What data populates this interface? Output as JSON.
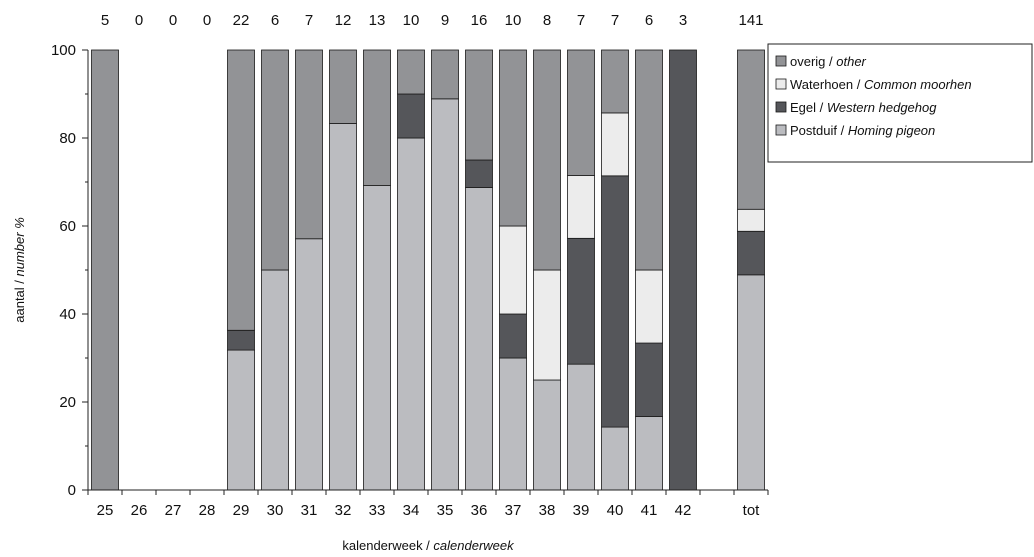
{
  "chart_data": {
    "type": "bar",
    "stacked": true,
    "percent": true,
    "categories": [
      "25",
      "26",
      "27",
      "28",
      "29",
      "30",
      "31",
      "32",
      "33",
      "34",
      "35",
      "36",
      "37",
      "38",
      "39",
      "40",
      "41",
      "42",
      "",
      "tot"
    ],
    "counts": [
      "5",
      "0",
      "0",
      "0",
      "22",
      "6",
      "7",
      "12",
      "13",
      "10",
      "9",
      "16",
      "10",
      "8",
      "7",
      "7",
      "6",
      "3",
      "",
      "141"
    ],
    "series": [
      {
        "name": "Postduif",
        "name_en": "Homing pigeon",
        "color": "#bbbcc0",
        "values": [
          0,
          0,
          0,
          0,
          31.8,
          50,
          57.1,
          83.3,
          69.2,
          80,
          88.9,
          68.75,
          30,
          25,
          28.6,
          14.3,
          16.7,
          0,
          0,
          48.9
        ]
      },
      {
        "name": "Egel",
        "name_en": "Western hedgehog",
        "color": "#55565a",
        "values": [
          0,
          0,
          0,
          0,
          4.5,
          0,
          0,
          0,
          0,
          10,
          0,
          6.25,
          10,
          0,
          28.6,
          57.1,
          16.7,
          100,
          0,
          9.9
        ]
      },
      {
        "name": "Waterhoen",
        "name_en": "Common moorhen",
        "color": "#ececec",
        "values": [
          0,
          0,
          0,
          0,
          0,
          0,
          0,
          0,
          0,
          0,
          0,
          0,
          20,
          25,
          14.3,
          14.3,
          16.6,
          0,
          0,
          5.0
        ]
      },
      {
        "name": "overig",
        "name_en": "other",
        "color": "#929396",
        "values": [
          100,
          0,
          0,
          0,
          63.7,
          50,
          42.9,
          16.7,
          30.8,
          10,
          11.1,
          25,
          40,
          50,
          28.5,
          14.3,
          50,
          0,
          0,
          36.2
        ]
      }
    ],
    "legend_order": [
      "overig",
      "Waterhoen",
      "Egel",
      "Postduif"
    ],
    "legend_sep": " / ",
    "ylim": [
      0,
      100
    ],
    "yticks": [
      "0",
      "20",
      "40",
      "60",
      "80",
      "100"
    ],
    "ylabel": "aantal",
    "ylabel_en": "number %",
    "ylabel_sep": " / ",
    "xlabel": "kalenderweek",
    "xlabel_en": "calenderweek",
    "xlabel_sep": " / ",
    "legend_position": "right",
    "grid": false
  }
}
